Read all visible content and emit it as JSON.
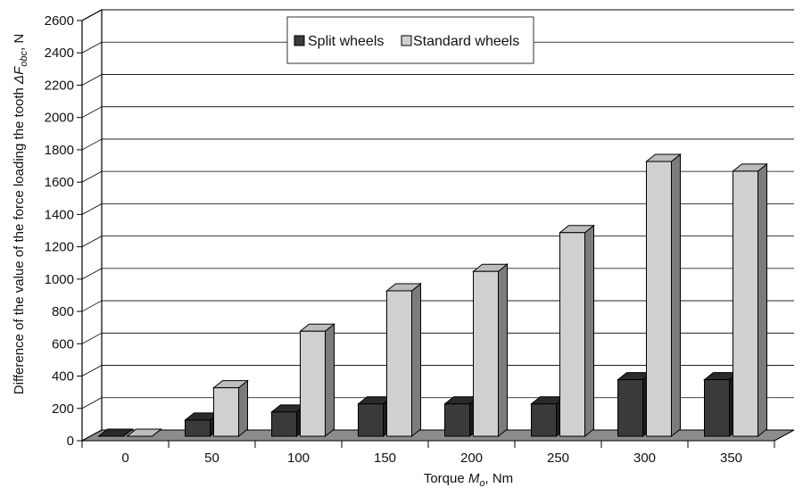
{
  "chart_data": {
    "type": "bar",
    "categories": [
      "0",
      "50",
      "100",
      "150",
      "200",
      "250",
      "300",
      "350"
    ],
    "series": [
      {
        "name": "Split wheels",
        "values": [
          0,
          100,
          150,
          200,
          200,
          200,
          350,
          350
        ]
      },
      {
        "name": "Standard wheels",
        "values": [
          0,
          300,
          650,
          900,
          1020,
          1260,
          1700,
          1640
        ]
      }
    ],
    "xlabel": {
      "prefix": "Torque",
      "symbol": "M",
      "subscript": "o",
      "unit": ", Nm"
    },
    "ylabel": {
      "prefix": "Difference of the value of the force loading the tooth",
      "symbol": "ΔF",
      "subscript": "obc",
      "unit": ", N"
    },
    "ylim": [
      0,
      2600
    ],
    "yticks": [
      "0",
      "200",
      "400",
      "600",
      "800",
      "1000",
      "1200",
      "1400",
      "1600",
      "1800",
      "2000",
      "2200",
      "2400",
      "2600"
    ],
    "grid": true,
    "legend_position": "top-center",
    "style": "3d-clustered-bar",
    "colors": {
      "split_front": "#3a3a3a",
      "split_top": "#2a2a2a",
      "split_side": "#1c1c1c",
      "standard_front": "#d0d0d0",
      "standard_top": "#bcbcbc",
      "standard_side": "#7c7c7c",
      "floor": "#8c8c8c"
    }
  }
}
